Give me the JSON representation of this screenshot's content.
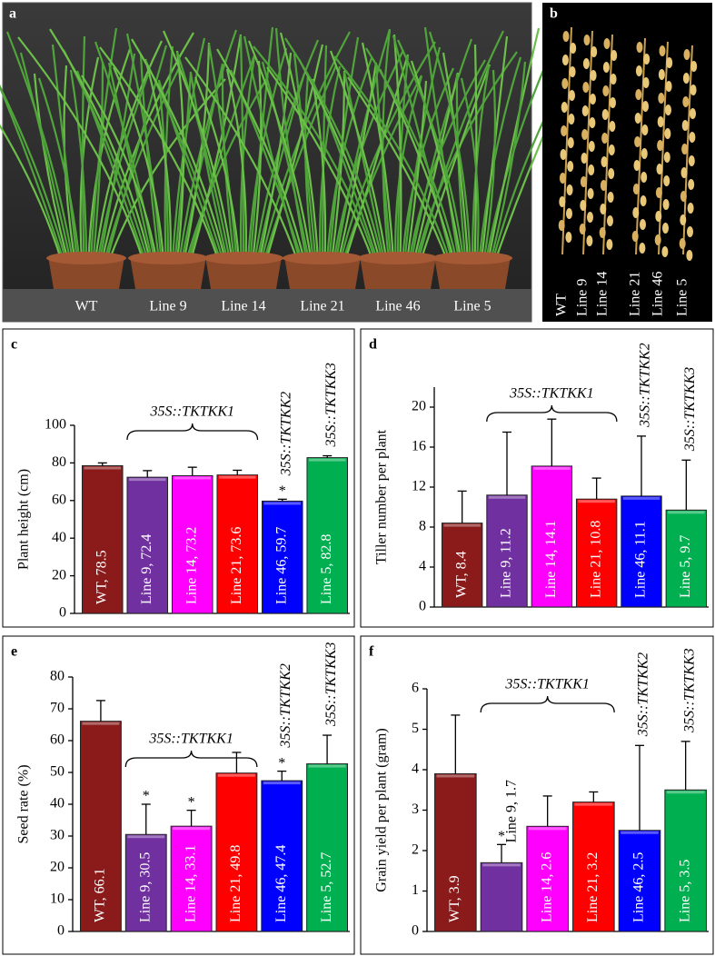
{
  "photos": [
    {
      "panel": "a",
      "labels": [
        "WT",
        "Line 9",
        "Line 14",
        "Line 21",
        "Line 46",
        "Line 5"
      ]
    },
    {
      "panel": "b",
      "labels": [
        "WT",
        "Line 9",
        "Line 14",
        "Line 21",
        "Line 46",
        "Line 5"
      ]
    }
  ],
  "chart_data": [
    {
      "type": "bar",
      "panel": "c",
      "y_label": "Plant height (cm)",
      "values": [
        78.5,
        72.4,
        73.2,
        73.6,
        59.7,
        82.8
      ],
      "value_labels": [
        "WT, 78.5",
        "Line 9, 72.4",
        "Line 14, 73.2",
        "Line 21, 73.6",
        "Line 46, 59.7",
        "Line 5, 82.8"
      ],
      "errors": [
        1.5,
        3.5,
        4.5,
        2.5,
        1,
        1
      ],
      "colors": [
        "#8b1a1a",
        "#7030a0",
        "#ff00ff",
        "#ff0000",
        "#0000ff",
        "#00b050"
      ],
      "significant": [
        false,
        false,
        false,
        false,
        true,
        false
      ],
      "sig_label": "*",
      "groups": [
        {
          "label": "35S::TKTKK1",
          "from": 1,
          "to": 3,
          "bracket": true
        },
        {
          "label": "35S::TKTKK2",
          "from": 4,
          "to": 4,
          "bracket": false
        },
        {
          "label": "35S::TKTKK3",
          "from": 5,
          "to": 5,
          "bracket": false
        }
      ],
      "ylim": [
        0,
        100
      ],
      "yticks": [
        0,
        20,
        40,
        60,
        80,
        100
      ]
    },
    {
      "type": "bar",
      "panel": "d",
      "y_label": "Tiller number per plant",
      "values": [
        8.4,
        11.2,
        14.1,
        10.8,
        11.1,
        9.7
      ],
      "value_labels": [
        "WT, 8.4",
        "Line 9, 11.2",
        "Line 14, 14.1",
        "Line 21, 10.8",
        "Line 46, 11.1",
        "Line 5, 9.7"
      ],
      "errors": [
        3.2,
        6.3,
        4.7,
        2.1,
        6,
        5
      ],
      "colors": [
        "#8b1a1a",
        "#7030a0",
        "#ff00ff",
        "#ff0000",
        "#0000ff",
        "#00b050"
      ],
      "significant": [
        false,
        false,
        false,
        false,
        false,
        false
      ],
      "sig_label": "*",
      "groups": [
        {
          "label": "35S::TKTKK1",
          "from": 1,
          "to": 3,
          "bracket": true
        },
        {
          "label": "35S::TKTKK2",
          "from": 4,
          "to": 4,
          "bracket": false
        },
        {
          "label": "35S::TKTKK3",
          "from": 5,
          "to": 5,
          "bracket": false
        }
      ],
      "ylim": [
        0,
        22
      ],
      "yticks": [
        0,
        4,
        8,
        12,
        16,
        20
      ]
    },
    {
      "type": "bar",
      "panel": "e",
      "y_label": "Seed rate (%)",
      "values": [
        66.1,
        30.5,
        33.1,
        49.8,
        47.4,
        52.7
      ],
      "value_labels": [
        "WT, 66.1",
        "Line 9, 30.5",
        "Line 14, 33.1",
        "Line 21, 49.8",
        "Line 46, 47.4",
        "Line 5, 52.7"
      ],
      "errors": [
        6.5,
        9.5,
        5,
        6.5,
        3,
        9
      ],
      "colors": [
        "#8b1a1a",
        "#7030a0",
        "#ff00ff",
        "#ff0000",
        "#0000ff",
        "#00b050"
      ],
      "significant": [
        false,
        true,
        true,
        false,
        true,
        false
      ],
      "sig_label": "*",
      "groups": [
        {
          "label": "35S::TKTKK1",
          "from": 1,
          "to": 3,
          "bracket": true
        },
        {
          "label": "35S::TKTKK2",
          "from": 4,
          "to": 4,
          "bracket": false
        },
        {
          "label": "35S::TKTKK3",
          "from": 5,
          "to": 5,
          "bracket": false
        }
      ],
      "ylim": [
        0,
        80
      ],
      "yticks": [
        0,
        10,
        20,
        30,
        40,
        50,
        60,
        70,
        80
      ]
    },
    {
      "type": "bar",
      "panel": "f",
      "y_label": "Grain yield per plant (gram)",
      "values": [
        3.9,
        1.7,
        2.6,
        3.2,
        2.5,
        3.5
      ],
      "value_labels": [
        "WT, 3.9",
        "Line 9, 1.7",
        "Line 14, 2.6",
        "Line 21, 3.2",
        "Line 46, 2.5",
        "Line 5, 3.5"
      ],
      "errors": [
        1.45,
        0.45,
        0.75,
        0.25,
        2.1,
        1.2
      ],
      "colors": [
        "#8b1a1a",
        "#7030a0",
        "#ff00ff",
        "#ff0000",
        "#0000ff",
        "#00b050"
      ],
      "significant": [
        false,
        true,
        false,
        false,
        false,
        false
      ],
      "sig_label": "*",
      "groups": [
        {
          "label": "35S::TKTKK1",
          "from": 1,
          "to": 3,
          "bracket": true
        },
        {
          "label": "35S::TKTKK2",
          "from": 4,
          "to": 4,
          "bracket": false
        },
        {
          "label": "35S::TKTKK3",
          "from": 5,
          "to": 5,
          "bracket": false
        }
      ],
      "ylim": [
        0,
        6
      ],
      "yticks": [
        0,
        1,
        2,
        3,
        4,
        5,
        6
      ]
    }
  ]
}
